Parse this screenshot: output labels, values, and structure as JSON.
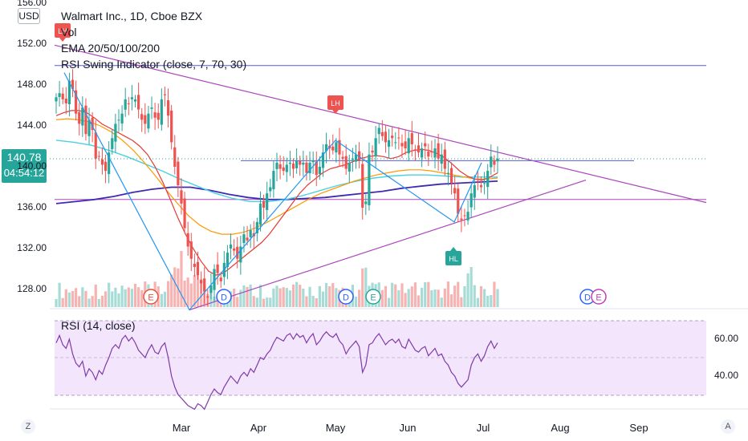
{
  "legend": {
    "title": "Walmart Inc., 1D, Cboe BZX",
    "vol": "Vol",
    "ema": "EMA 20/50/100/200",
    "rsi_swing": "RSI Swing Indicator (close, 7, 70, 30)"
  },
  "currency": "USD",
  "price_tag": {
    "price": "140.78",
    "countdown": "04:54:12"
  },
  "rsi_legend": "RSI (14, close)",
  "corner_left": "Z",
  "corner_right": "A",
  "markers": {
    "lh_top": "LH",
    "lh_mid": "LH",
    "hl": "HL",
    "earnings": "E",
    "dividend": "D"
  },
  "colors": {
    "up": "#26a69a",
    "down": "#ef5350",
    "ema20": "#e53935",
    "ema50": "#ff9800",
    "ema100": "#4dd0e1",
    "ema200": "#3f2bb3",
    "trend": "#ab47bc",
    "swing": "#2196f3",
    "rsi": "#7e3ba8",
    "rsi_band": "#f3e5fb"
  },
  "chart_data": {
    "type": "candlestick",
    "title": "Walmart Inc., 1D, Cboe BZX",
    "y_axis_ticks": [
      "156.00",
      "152.00",
      "148.00",
      "144.00",
      "140.00",
      "136.00",
      "132.00",
      "128.00"
    ],
    "y_range": [
      125.7,
      156.2
    ],
    "x_axis_ticks": [
      "Mar",
      "Apr",
      "May",
      "Jun",
      "Jul",
      "Aug",
      "Sep"
    ],
    "last_price": 140.78,
    "close_series": [
      146.8,
      147.2,
      146.6,
      146.2,
      148.4,
      147.6,
      145.2,
      144.2,
      145.8,
      143.2,
      144.6,
      143.6,
      140.8,
      141.0,
      140.2,
      139.6,
      141.4,
      142.8,
      144.2,
      144.6,
      145.2,
      146.6,
      146.2,
      146.8,
      146.6,
      145.6,
      144.6,
      144.2,
      145.2,
      145.8,
      144.8,
      144.6,
      146.6,
      147.0,
      145.0,
      142.4,
      140.0,
      138.2,
      136.4,
      134.0,
      132.2,
      131.0,
      130.2,
      129.4,
      128.6,
      127.8,
      127.2,
      128.4,
      130.0,
      129.6,
      128.8,
      130.6,
      131.6,
      132.4,
      131.8,
      131.0,
      132.2,
      133.4,
      132.8,
      133.8,
      133.2,
      134.6,
      136.4,
      136.0,
      137.4,
      138.0,
      139.6,
      140.4,
      139.8,
      139.6,
      140.2,
      140.4,
      139.8,
      140.6,
      140.2,
      140.4,
      139.4,
      140.4,
      140.6,
      139.2,
      140.0,
      141.4,
      142.2,
      141.8,
      141.6,
      142.4,
      141.2,
      140.8,
      139.8,
      140.4,
      140.8,
      141.2,
      140.6,
      136.0,
      136.6,
      141.2,
      141.4,
      142.8,
      143.8,
      143.0,
      142.4,
      142.6,
      142.8,
      142.4,
      142.8,
      142.0,
      141.8,
      142.8,
      142.2,
      141.6,
      141.4,
      141.8,
      142.0,
      141.0,
      141.4,
      141.8,
      140.8,
      141.2,
      139.8,
      139.4,
      138.4,
      137.4,
      135.4,
      134.8,
      135.2,
      135.6,
      137.4,
      138.2,
      138.6,
      138.0,
      138.4,
      139.6,
      141.0,
      140.2,
      140.8
    ],
    "ema20": [
      145.0,
      145.3,
      145.5,
      145.5,
      145.3,
      144.8,
      144.2,
      143.8,
      143.4,
      143.0,
      142.6,
      142.0,
      141.2,
      140.0,
      138.5,
      136.8,
      135.0,
      133.4,
      132.0,
      130.8,
      129.8,
      129.4,
      129.6,
      130.2,
      130.8,
      131.4,
      132.0,
      132.6,
      133.4,
      134.4,
      135.4,
      136.4,
      137.4,
      138.2,
      138.8,
      139.4,
      139.8,
      140.0,
      140.2,
      140.5,
      140.8,
      141.0,
      141.1,
      141.0,
      140.8,
      141.0,
      141.4,
      141.6,
      141.7,
      141.6,
      141.3,
      140.9,
      140.3,
      139.6,
      139.1,
      138.8,
      138.7,
      139.0,
      139.4
    ],
    "ema50": [
      144.6,
      144.7,
      144.6,
      144.4,
      144.0,
      143.4,
      142.6,
      141.6,
      140.4,
      139.1,
      137.7,
      136.4,
      135.2,
      134.3,
      133.7,
      133.4,
      133.4,
      133.6,
      134.0,
      134.5,
      135.1,
      135.7,
      136.3,
      136.9,
      137.4,
      137.8,
      138.2,
      138.6,
      138.9,
      139.2,
      139.4,
      139.6,
      139.7,
      139.7,
      139.6,
      139.4,
      139.2,
      139.0,
      138.8,
      138.8,
      138.9
    ],
    "ema100": [
      142.6,
      142.4,
      142.1,
      141.6,
      141.0,
      140.3,
      139.6,
      138.8,
      138.1,
      137.4,
      136.9,
      136.6,
      136.6,
      136.8,
      137.2,
      137.7,
      138.2,
      138.6,
      138.9,
      139.1,
      139.2,
      139.2,
      139.1,
      139.0,
      139.0,
      139.0
    ],
    "ema200": [
      136.4,
      136.6,
      136.8,
      137.1,
      137.5,
      137.8,
      138.0,
      138.0,
      137.7,
      137.3,
      137.0,
      136.8,
      136.8,
      136.9,
      137.0,
      137.2,
      137.4,
      137.6,
      137.9,
      138.1,
      138.3,
      138.4,
      138.5,
      138.6
    ],
    "horizontal_levels": [
      149.9,
      140.6,
      136.8
    ],
    "rsi": {
      "title": "RSI (14, close)",
      "y_axis_ticks": [
        "60.00",
        "40.00"
      ],
      "upper_band": 70,
      "lower_band": 30,
      "values": [
        58,
        62,
        57,
        55,
        60,
        52,
        47,
        45,
        48,
        40,
        44,
        42,
        38,
        43,
        41,
        46,
        50,
        55,
        57,
        55,
        60,
        62,
        59,
        61,
        58,
        54,
        52,
        50,
        54,
        57,
        53,
        52,
        56,
        58,
        50,
        40,
        34,
        30,
        28,
        26,
        24,
        23,
        22,
        25,
        24,
        22,
        26,
        30,
        33,
        31,
        30,
        34,
        37,
        40,
        38,
        36,
        40,
        42,
        40,
        44,
        42,
        46,
        50,
        49,
        52,
        54,
        58,
        61,
        60,
        59,
        62,
        63,
        60,
        63,
        61,
        62,
        58,
        61,
        63,
        57,
        59,
        62,
        64,
        62,
        61,
        63,
        59,
        57,
        52,
        55,
        57,
        59,
        56,
        42,
        46,
        57,
        58,
        61,
        63,
        60,
        57,
        59,
        60,
        58,
        60,
        56,
        55,
        60,
        57,
        54,
        53,
        55,
        56,
        51,
        53,
        55,
        51,
        52,
        48,
        46,
        42,
        40,
        36,
        34,
        36,
        38,
        46,
        50,
        52,
        48,
        51,
        56,
        59,
        55,
        58
      ]
    }
  }
}
